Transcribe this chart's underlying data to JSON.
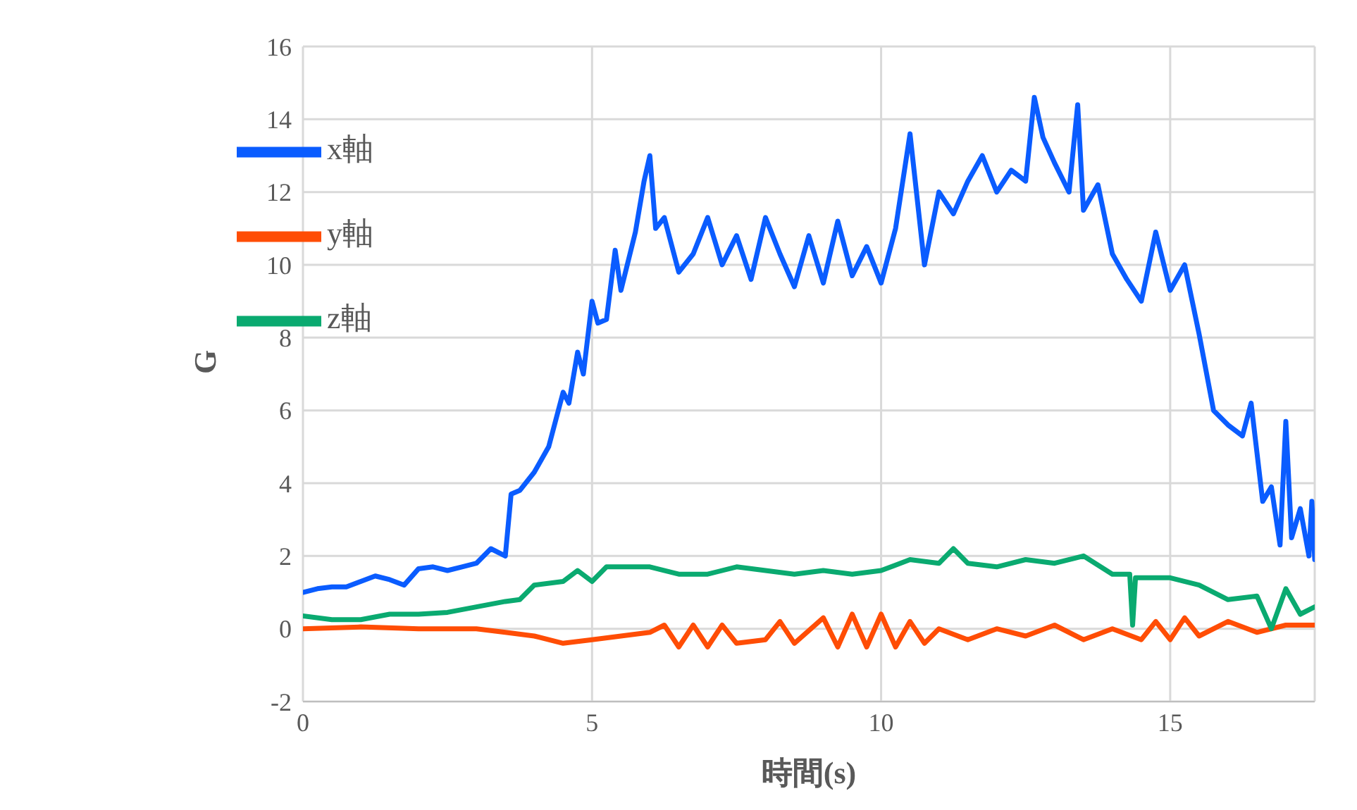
{
  "chart_data": {
    "type": "line",
    "xlabel": "時間(s)",
    "ylabel": "G",
    "xlim": [
      0,
      17.5
    ],
    "xticks": [
      0,
      5,
      10,
      15
    ],
    "ylim": [
      -2,
      16
    ],
    "yticks": [
      -2,
      0,
      2,
      4,
      6,
      8,
      10,
      12,
      14,
      16
    ],
    "grid": true,
    "legend": "top left",
    "marker": "none",
    "line_style": "solid",
    "series": [
      {
        "name": "x軸",
        "color": "#0a5cff",
        "x": [
          0,
          0.25,
          0.5,
          0.75,
          1,
          1.25,
          1.5,
          1.75,
          2,
          2.25,
          2.5,
          2.75,
          3,
          3.25,
          3.5,
          3.6,
          3.75,
          4,
          4.25,
          4.5,
          4.6,
          4.75,
          4.85,
          5,
          5.1,
          5.25,
          5.4,
          5.5,
          5.75,
          5.9,
          6,
          6.1,
          6.25,
          6.5,
          6.75,
          7,
          7.25,
          7.5,
          7.75,
          8,
          8.25,
          8.5,
          8.75,
          9,
          9.25,
          9.5,
          9.75,
          10,
          10.25,
          10.5,
          10.75,
          11,
          11.25,
          11.5,
          11.75,
          12,
          12.25,
          12.5,
          12.65,
          12.8,
          13,
          13.25,
          13.4,
          13.5,
          13.75,
          14,
          14.25,
          14.5,
          14.75,
          15,
          15.25,
          15.5,
          15.75,
          16,
          16.25,
          16.4,
          16.6,
          16.75,
          16.9,
          17,
          17.1,
          17.25,
          17.4,
          17.45,
          17.5
        ],
        "values": [
          1.0,
          1.1,
          1.15,
          1.15,
          1.3,
          1.45,
          1.35,
          1.2,
          1.65,
          1.7,
          1.6,
          1.7,
          1.8,
          2.2,
          2.0,
          3.7,
          3.8,
          4.3,
          5.0,
          6.5,
          6.2,
          7.6,
          7.0,
          9.0,
          8.4,
          8.5,
          10.4,
          9.3,
          10.9,
          12.3,
          13.0,
          11.0,
          11.3,
          9.8,
          10.3,
          11.3,
          10.0,
          10.8,
          9.6,
          11.3,
          10.3,
          9.4,
          10.8,
          9.5,
          11.2,
          9.7,
          10.5,
          9.5,
          11.0,
          13.6,
          10.0,
          12.0,
          11.4,
          12.3,
          13.0,
          12.0,
          12.6,
          12.3,
          14.6,
          13.5,
          12.8,
          12.0,
          14.4,
          11.5,
          12.2,
          10.3,
          9.6,
          9.0,
          10.9,
          9.3,
          10.0,
          8.1,
          6.0,
          5.6,
          5.3,
          6.2,
          3.5,
          3.9,
          2.3,
          5.7,
          2.5,
          3.3,
          2.0,
          3.5,
          1.9
        ]
      },
      {
        "name": "y軸",
        "color": "#ff4d05",
        "x": [
          0,
          1,
          2,
          3,
          3.5,
          4,
          4.5,
          5,
          5.5,
          6,
          6.25,
          6.5,
          6.75,
          7,
          7.25,
          7.5,
          8,
          8.25,
          8.5,
          9,
          9.25,
          9.5,
          9.75,
          10,
          10.25,
          10.5,
          10.75,
          11,
          11.5,
          12,
          12.5,
          13,
          13.5,
          14,
          14.5,
          14.75,
          15,
          15.25,
          15.5,
          16,
          16.5,
          17,
          17.5
        ],
        "values": [
          0,
          0.05,
          0,
          0,
          -0.1,
          -0.2,
          -0.4,
          -0.3,
          -0.2,
          -0.1,
          0.1,
          -0.5,
          0.1,
          -0.5,
          0.1,
          -0.4,
          -0.3,
          0.2,
          -0.4,
          0.3,
          -0.5,
          0.4,
          -0.5,
          0.4,
          -0.5,
          0.2,
          -0.4,
          0,
          -0.3,
          0,
          -0.2,
          0.1,
          -0.3,
          0,
          -0.3,
          0.2,
          -0.3,
          0.3,
          -0.2,
          0.2,
          -0.1,
          0.1,
          0.1
        ]
      },
      {
        "name": "z軸",
        "color": "#0aaa70",
        "x": [
          0,
          0.5,
          1,
          1.5,
          2,
          2.5,
          3,
          3.5,
          3.75,
          4,
          4.5,
          4.75,
          5,
          5.25,
          5.5,
          6,
          6.5,
          7,
          7.5,
          8,
          8.5,
          9,
          9.5,
          10,
          10.5,
          11,
          11.25,
          11.5,
          12,
          12.5,
          13,
          13.5,
          14,
          14.3,
          14.35,
          14.4,
          15,
          15.5,
          16,
          16.5,
          16.75,
          17,
          17.25,
          17.5
        ],
        "values": [
          0.35,
          0.25,
          0.25,
          0.4,
          0.4,
          0.45,
          0.6,
          0.75,
          0.8,
          1.2,
          1.3,
          1.6,
          1.3,
          1.7,
          1.7,
          1.7,
          1.5,
          1.5,
          1.7,
          1.6,
          1.5,
          1.6,
          1.5,
          1.6,
          1.9,
          1.8,
          2.2,
          1.8,
          1.7,
          1.9,
          1.8,
          2.0,
          1.5,
          1.5,
          0.1,
          1.4,
          1.4,
          1.2,
          0.8,
          0.9,
          0,
          1.1,
          0.4,
          0.6
        ]
      }
    ]
  }
}
